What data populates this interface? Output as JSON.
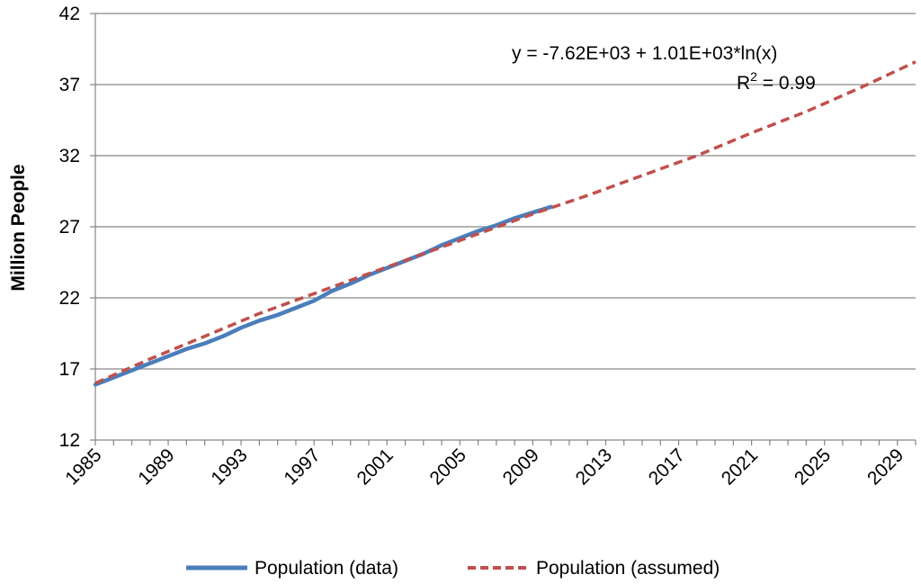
{
  "chart_data": {
    "type": "line",
    "title": "",
    "xlabel": "",
    "ylabel": "Million People",
    "xlim": [
      1985,
      2030
    ],
    "ylim": [
      12,
      42
    ],
    "yticks": [
      12,
      17,
      22,
      27,
      32,
      37,
      42
    ],
    "xticks": [
      1985,
      1989,
      1993,
      1997,
      2001,
      2005,
      2009,
      2013,
      2017,
      2021,
      2025,
      2029
    ],
    "grid": "horizontal",
    "legend_position": "bottom",
    "series": [
      {
        "name": "Population (data)",
        "color": "#4a7ebb",
        "style": "solid",
        "x": [
          1985,
          1986,
          1987,
          1988,
          1989,
          1990,
          1991,
          1992,
          1993,
          1994,
          1995,
          1996,
          1997,
          1998,
          1999,
          2000,
          2001,
          2002,
          2003,
          2004,
          2005,
          2006,
          2007,
          2008,
          2009,
          2010
        ],
        "values": [
          15.9,
          16.4,
          16.9,
          17.4,
          17.9,
          18.4,
          18.8,
          19.3,
          19.9,
          20.4,
          20.8,
          21.3,
          21.8,
          22.5,
          23.0,
          23.6,
          24.1,
          24.6,
          25.1,
          25.7,
          26.2,
          26.7,
          27.1,
          27.6,
          28.0,
          28.4
        ]
      },
      {
        "name": "Population (assumed)",
        "color": "#c0504d",
        "style": "dashed",
        "x": [
          1985,
          1988,
          1991,
          1994,
          1997,
          2000,
          2003,
          2006,
          2009,
          2012,
          2015,
          2018,
          2021,
          2024,
          2027,
          2030
        ],
        "values": [
          16.0,
          17.7,
          19.3,
          20.9,
          22.3,
          23.7,
          25.1,
          26.5,
          27.9,
          29.2,
          30.6,
          32.0,
          33.6,
          35.1,
          36.8,
          38.6
        ]
      }
    ],
    "annotations": {
      "equation": "y  = -7.62E+03 + 1.01E+03*ln(x)",
      "r_squared_label": "R",
      "r_squared_sup": "2",
      "r_squared_value": " = 0.99"
    }
  }
}
